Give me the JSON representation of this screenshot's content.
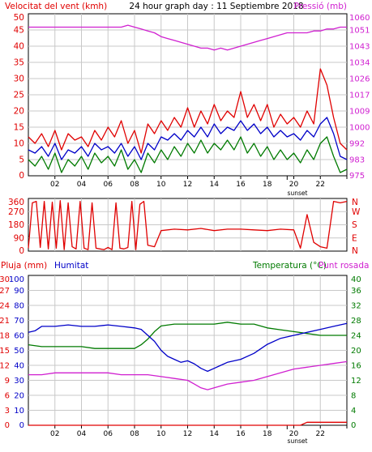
{
  "colors": {
    "red": "#e00000",
    "blue": "#0000c8",
    "green": "#007a00",
    "magenta": "#d020d0",
    "grid": "#c8c8c8",
    "axis": "#000000"
  },
  "chart_data": [
    {
      "type": "line",
      "title": "24 hour graph day : 11 Septiembre 2018",
      "left_label": "Velocitat del vent (kmh)",
      "right_label": "Pressió (mb)",
      "left_axis": {
        "min": 0,
        "max": 50,
        "ticks": [
          "0",
          "5",
          "10",
          "15",
          "20",
          "25",
          "30",
          "35",
          "40",
          "45",
          "50"
        ]
      },
      "right_axis": {
        "min": 975,
        "max": 1060,
        "ticks": [
          "975",
          "983",
          "992",
          "1000",
          "1009",
          "1017",
          "1026",
          "1034",
          "1043",
          "1051",
          "1060"
        ]
      },
      "x_ticks": [
        "02",
        "04",
        "06",
        "08",
        "10",
        "12",
        "14",
        "16",
        "18",
        "20",
        "22",
        ""
      ],
      "sunset_label": "sunset",
      "series": [
        {
          "axis": "right",
          "color": "magenta",
          "x": [
            0,
            1,
            2,
            3,
            4,
            5,
            6,
            7,
            7.5,
            8,
            8.5,
            9,
            9.5,
            10,
            10.5,
            11,
            11.5,
            12,
            12.5,
            13,
            13.5,
            14,
            14.5,
            15,
            15.5,
            16,
            16.5,
            17,
            17.5,
            18,
            18.5,
            19,
            19.5,
            20,
            20.5,
            21,
            21.5,
            22,
            22.5,
            23,
            23.5,
            24
          ],
          "y": [
            1053,
            1053,
            1053,
            1053,
            1053,
            1053,
            1053,
            1053,
            1054,
            1053,
            1052,
            1051,
            1050,
            1048,
            1047,
            1046,
            1045,
            1044,
            1043,
            1042,
            1042,
            1041,
            1042,
            1041,
            1042,
            1043,
            1044,
            1045,
            1046,
            1047,
            1048,
            1049,
            1050,
            1050,
            1050,
            1050,
            1051,
            1051,
            1052,
            1052,
            1053,
            1053
          ]
        },
        {
          "axis": "left",
          "color": "blue",
          "x": [
            0,
            0.5,
            1,
            1.5,
            2,
            2.5,
            3,
            3.5,
            4,
            4.5,
            5,
            5.5,
            6,
            6.5,
            7,
            7.5,
            8,
            8.5,
            9,
            9.5,
            10,
            10.5,
            11,
            11.5,
            12,
            12.5,
            13,
            13.5,
            14,
            14.5,
            15,
            15.5,
            16,
            16.5,
            17,
            17.5,
            18,
            18.5,
            19,
            19.5,
            20,
            20.5,
            21,
            21.5,
            22,
            22.5,
            23,
            23.5,
            24
          ],
          "y": [
            8,
            7,
            9,
            6,
            10,
            5,
            8,
            7,
            9,
            6,
            10,
            8,
            9,
            7,
            10,
            6,
            9,
            5,
            10,
            8,
            12,
            11,
            13,
            11,
            14,
            12,
            15,
            12,
            16,
            13,
            15,
            14,
            17,
            14,
            16,
            13,
            15,
            12,
            14,
            12,
            13,
            11,
            14,
            12,
            16,
            18,
            13,
            6,
            5
          ]
        },
        {
          "axis": "left",
          "color": "red",
          "x": [
            0,
            0.5,
            1,
            1.5,
            2,
            2.5,
            3,
            3.5,
            4,
            4.5,
            5,
            5.5,
            6,
            6.5,
            7,
            7.5,
            8,
            8.5,
            9,
            9.5,
            10,
            10.5,
            11,
            11.5,
            12,
            12.5,
            13,
            13.5,
            14,
            14.5,
            15,
            15.5,
            16,
            16.5,
            17,
            17.5,
            18,
            18.5,
            19,
            19.5,
            20,
            20.5,
            21,
            21.5,
            22,
            22.5,
            23,
            23.5,
            24
          ],
          "y": [
            12,
            10,
            13,
            9,
            14,
            8,
            13,
            11,
            12,
            9,
            14,
            11,
            15,
            12,
            17,
            10,
            14,
            7,
            16,
            13,
            17,
            14,
            18,
            15,
            21,
            15,
            20,
            16,
            22,
            17,
            20,
            18,
            26,
            18,
            22,
            17,
            22,
            15,
            19,
            16,
            18,
            15,
            20,
            16,
            33,
            28,
            18,
            10,
            8
          ]
        },
        {
          "axis": "left",
          "color": "green",
          "x": [
            0,
            0.5,
            1,
            1.5,
            2,
            2.5,
            3,
            3.5,
            4,
            4.5,
            5,
            5.5,
            6,
            6.5,
            7,
            7.5,
            8,
            8.5,
            9,
            9.5,
            10,
            10.5,
            11,
            11.5,
            12,
            12.5,
            13,
            13.5,
            14,
            14.5,
            15,
            15.5,
            16,
            16.5,
            17,
            17.5,
            18,
            18.5,
            19,
            19.5,
            20,
            20.5,
            21,
            21.5,
            22,
            22.5,
            23,
            23.5,
            24
          ],
          "y": [
            5,
            3,
            6,
            2,
            7,
            1,
            5,
            3,
            6,
            2,
            7,
            4,
            6,
            3,
            8,
            2,
            5,
            1,
            7,
            4,
            8,
            5,
            9,
            6,
            10,
            7,
            11,
            7,
            10,
            8,
            11,
            8,
            12,
            7,
            10,
            6,
            9,
            5,
            8,
            5,
            7,
            4,
            8,
            5,
            10,
            12,
            6,
            1,
            2
          ]
        }
      ]
    },
    {
      "type": "line",
      "left_axis": {
        "min": 0,
        "max": 360,
        "ticks": [
          "0",
          "90",
          "180",
          "270",
          "360"
        ]
      },
      "right_ticks": [
        "N",
        "E",
        "S",
        "W",
        "N"
      ],
      "series": [
        {
          "axis": "left",
          "color": "red",
          "x": [
            0,
            0.3,
            0.6,
            0.9,
            1.2,
            1.5,
            1.8,
            2.1,
            2.4,
            2.7,
            3,
            3.3,
            3.6,
            3.9,
            4.2,
            4.5,
            4.8,
            5.1,
            5.4,
            5.7,
            6,
            6.3,
            6.6,
            6.9,
            7.2,
            7.5,
            7.8,
            8.1,
            8.4,
            8.7,
            9,
            9.5,
            10,
            11,
            12,
            13,
            14,
            15,
            16,
            17,
            18,
            19,
            20,
            20.5,
            21,
            21.5,
            22,
            22.5,
            23,
            23.5,
            24
          ],
          "y": [
            20,
            330,
            340,
            25,
            340,
            15,
            335,
            20,
            345,
            10,
            330,
            30,
            15,
            340,
            20,
            10,
            330,
            20,
            15,
            10,
            25,
            10,
            330,
            20,
            15,
            25,
            340,
            10,
            320,
            340,
            40,
            30,
            140,
            150,
            145,
            155,
            140,
            150,
            150,
            145,
            140,
            150,
            145,
            20,
            250,
            60,
            30,
            20,
            340,
            330,
            340
          ]
        }
      ]
    },
    {
      "type": "line",
      "left_label_1": "Pluja (mm)",
      "left_label_2": "Humitat",
      "right_label_1": "Temperatura (°C)",
      "right_label_2": "Punt rosada",
      "rain_axis": {
        "min": 0,
        "max": 30,
        "ticks": [
          "0",
          "3",
          "6",
          "9",
          "12",
          "15",
          "18",
          "21",
          "24",
          "27",
          "30"
        ]
      },
      "humidity_axis": {
        "min": 0,
        "max": 100,
        "ticks": [
          "0",
          "10",
          "20",
          "30",
          "40",
          "50",
          "60",
          "70",
          "80",
          "90",
          "100"
        ]
      },
      "temp_axis": {
        "min": 0,
        "max": 40,
        "ticks": [
          "0",
          "4",
          "8",
          "12",
          "16",
          "20",
          "24",
          "28",
          "32",
          "36",
          "40"
        ]
      },
      "x_ticks": [
        "02",
        "04",
        "06",
        "08",
        "10",
        "12",
        "14",
        "16",
        "18",
        "20",
        "22",
        ""
      ],
      "sunset_label": "sunset",
      "series": [
        {
          "axis": "temp",
          "color": "green",
          "x": [
            0,
            1,
            2,
            3,
            4,
            5,
            6,
            7,
            8,
            8.5,
            9,
            9.5,
            10,
            11,
            12,
            13,
            14,
            15,
            16,
            17,
            18,
            19,
            20,
            21,
            22,
            23,
            24
          ],
          "y": [
            21.5,
            21,
            21,
            21,
            21,
            20.5,
            20.5,
            20.5,
            20.5,
            21.5,
            23,
            25,
            26.5,
            27,
            27,
            27,
            27,
            27.5,
            27,
            27,
            26,
            25.5,
            25,
            24.5,
            24,
            24,
            24
          ]
        },
        {
          "axis": "humidity",
          "color": "blue",
          "x": [
            0,
            0.5,
            1,
            2,
            3,
            4,
            5,
            6,
            7,
            8,
            8.5,
            9,
            9.5,
            10,
            10.5,
            11,
            11.5,
            12,
            12.5,
            13,
            13.5,
            14,
            14.5,
            15,
            16,
            17,
            18,
            19,
            20,
            21,
            22,
            23,
            24
          ],
          "y": [
            62,
            63,
            66,
            66,
            67,
            66,
            66,
            67,
            66,
            65,
            64,
            60,
            56,
            50,
            46,
            44,
            42,
            43,
            41,
            38,
            36,
            38,
            40,
            42,
            44,
            48,
            54,
            58,
            60,
            62,
            64,
            66,
            68
          ]
        },
        {
          "axis": "temp",
          "color": "magenta",
          "x": [
            0,
            1,
            2,
            3,
            4,
            5,
            6,
            7,
            8,
            9,
            10,
            11,
            12,
            12.5,
            13,
            13.5,
            14,
            15,
            16,
            17,
            18,
            19,
            20,
            21,
            22,
            23,
            24
          ],
          "y": [
            13.5,
            13.5,
            14,
            14,
            14,
            14,
            14,
            13.5,
            13.5,
            13.5,
            13,
            12.5,
            12,
            11,
            10,
            9.5,
            10,
            11,
            11.5,
            12,
            13,
            14,
            15,
            15.5,
            16,
            16.5,
            17
          ]
        },
        {
          "axis": "rain",
          "color": "red",
          "x": [
            0,
            10,
            20,
            20.5,
            21,
            22,
            23,
            24
          ],
          "y": [
            0,
            0,
            0,
            0,
            0.6,
            0.6,
            0.6,
            0.6
          ]
        }
      ]
    }
  ]
}
